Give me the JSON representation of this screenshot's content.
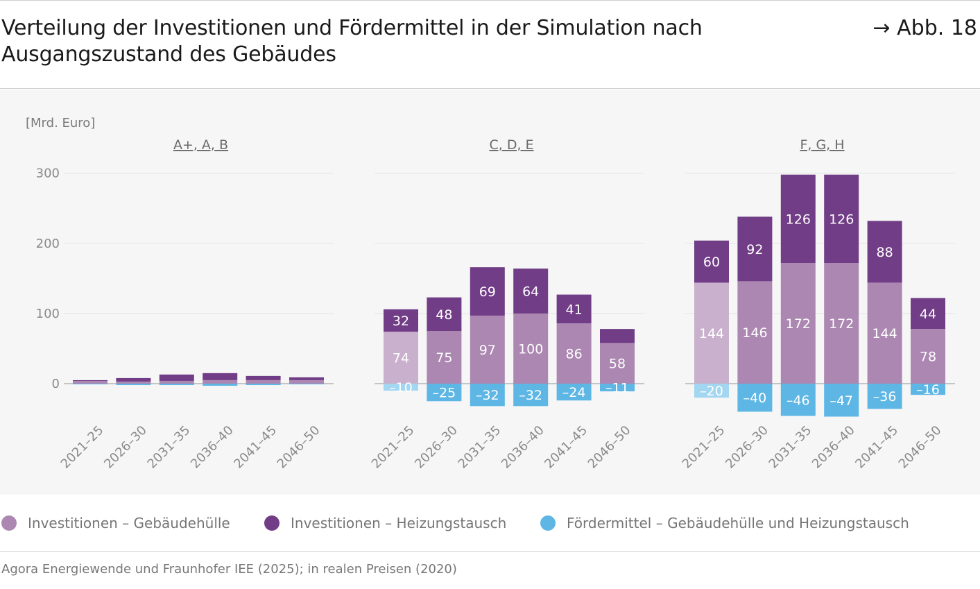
{
  "header": {
    "title": "Verteilung der Investitionen und Fördermittel in der Simulation nach Ausgangszustand des Gebäudes",
    "figure_ref": "→ Abb. 18"
  },
  "legend": [
    {
      "label": "Investitionen – Gebäudehülle",
      "color": "#ab87b1"
    },
    {
      "label": "Investitionen – Heizungstausch",
      "color": "#713d86"
    },
    {
      "label": "Fördermittel – Gebäudehülle und Heizungstausch",
      "color": "#5eb6e5"
    }
  ],
  "source": "Agora Energiewende und Fraunhofer IEE (2025); in realen Preisen (2020)",
  "chart_data": {
    "type": "bar",
    "stacked": true,
    "unit": "[Mrd. Euro]",
    "ylim": [
      -50,
      300
    ],
    "yticks": [
      0,
      100,
      200,
      300
    ],
    "grid": true,
    "categories": [
      "2021–25",
      "2026–30",
      "2031–35",
      "2036–40",
      "2041–45",
      "2046–50"
    ],
    "panels": [
      {
        "title": "A+, A, B",
        "series": [
          {
            "name": "Investitionen – Gebäudehülle",
            "values": [
              4,
              3,
              4,
              5,
              5,
              5
            ],
            "labels": [
              "",
              "",
              "",
              "",
              "",
              ""
            ]
          },
          {
            "name": "Investitionen – Heizungstausch",
            "values": [
              1,
              5,
              9,
              10,
              6,
              4
            ],
            "labels": [
              "",
              "",
              "",
              "",
              "",
              ""
            ]
          },
          {
            "name": "Fördermittel – Gebäudehülle und Heizungstausch",
            "values": [
              -1,
              -2,
              -2,
              -3,
              -2,
              -1
            ],
            "labels": [
              "",
              "",
              "",
              "",
              "",
              ""
            ]
          }
        ]
      },
      {
        "title": "C, D, E",
        "series": [
          {
            "name": "Investitionen – Gebäudehülle",
            "values": [
              74,
              75,
              97,
              100,
              86,
              58
            ],
            "labels": [
              "74",
              "75",
              "97",
              "100",
              "86",
              "58"
            ]
          },
          {
            "name": "Investitionen – Heizungstausch",
            "values": [
              32,
              48,
              69,
              64,
              41,
              20
            ],
            "labels": [
              "32",
              "48",
              "69",
              "64",
              "41",
              ""
            ]
          },
          {
            "name": "Fördermittel – Gebäudehülle und Heizungstausch",
            "values": [
              -10,
              -25,
              -32,
              -32,
              -24,
              -11
            ],
            "labels": [
              "–10",
              "–25",
              "–32",
              "–32",
              "–24",
              "–11"
            ]
          }
        ]
      },
      {
        "title": "F, G, H",
        "series": [
          {
            "name": "Investitionen – Gebäudehülle",
            "values": [
              144,
              146,
              172,
              172,
              144,
              78
            ],
            "labels": [
              "144",
              "146",
              "172",
              "172",
              "144",
              "78"
            ]
          },
          {
            "name": "Investitionen – Heizungstausch",
            "values": [
              60,
              92,
              126,
              126,
              88,
              44
            ],
            "labels": [
              "60",
              "92",
              "126",
              "126",
              "88",
              "44"
            ]
          },
          {
            "name": "Fördermittel – Gebäudehülle und Heizungstausch",
            "values": [
              -20,
              -40,
              -46,
              -47,
              -36,
              -16
            ],
            "labels": [
              "–20",
              "–40",
              "–46",
              "–47",
              "–36",
              "–16"
            ]
          }
        ]
      }
    ],
    "first_bar_lighter": true
  }
}
